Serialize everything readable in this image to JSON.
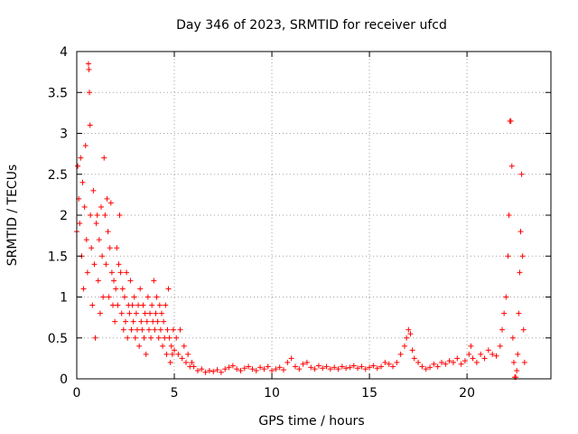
{
  "chart_data": {
    "type": "scatter",
    "title": "Day 346 of 2023, SRMTID for receiver ufcd",
    "xlabel": "GPS time / hours",
    "ylabel": "SRMTID / TECUs",
    "xlim": [
      0,
      24.3
    ],
    "ylim": [
      0,
      4
    ],
    "xticks": [
      0,
      5,
      10,
      15,
      20
    ],
    "xtick_labels": [
      "0",
      "5",
      "10",
      "15",
      "20"
    ],
    "yticks": [
      0,
      0.5,
      1,
      1.5,
      2,
      2.5,
      3,
      3.5,
      4
    ],
    "ytick_labels": [
      "0",
      "0.5",
      "1",
      "1.5",
      "2",
      "2.5",
      "3",
      "3.5",
      "4"
    ],
    "grid": true,
    "marker": "+",
    "series": [
      {
        "name": "SRMTID",
        "color": "#ff0000",
        "points": [
          [
            0.0,
            1.8
          ],
          [
            0.05,
            2.6
          ],
          [
            0.1,
            2.2
          ],
          [
            0.15,
            1.9
          ],
          [
            0.2,
            2.7
          ],
          [
            0.25,
            1.5
          ],
          [
            0.3,
            2.4
          ],
          [
            0.35,
            1.1
          ],
          [
            0.4,
            2.1
          ],
          [
            0.45,
            2.85
          ],
          [
            0.5,
            1.7
          ],
          [
            0.55,
            1.3
          ],
          [
            0.6,
            3.85
          ],
          [
            0.62,
            3.78
          ],
          [
            0.65,
            3.5
          ],
          [
            0.68,
            3.1
          ],
          [
            0.7,
            2.0
          ],
          [
            0.75,
            1.6
          ],
          [
            0.8,
            0.9
          ],
          [
            0.85,
            2.3
          ],
          [
            0.9,
            1.4
          ],
          [
            0.95,
            0.5
          ],
          [
            1.0,
            1.9
          ],
          [
            1.05,
            2.0
          ],
          [
            1.1,
            1.2
          ],
          [
            1.15,
            1.7
          ],
          [
            1.2,
            0.8
          ],
          [
            1.25,
            2.1
          ],
          [
            1.3,
            1.5
          ],
          [
            1.35,
            1.0
          ],
          [
            1.4,
            2.7
          ],
          [
            1.45,
            2.0
          ],
          [
            1.5,
            1.4
          ],
          [
            1.55,
            2.2
          ],
          [
            1.6,
            1.8
          ],
          [
            1.65,
            1.0
          ],
          [
            1.7,
            1.6
          ],
          [
            1.75,
            2.15
          ],
          [
            1.8,
            1.3
          ],
          [
            1.85,
            0.9
          ],
          [
            1.9,
            1.2
          ],
          [
            1.95,
            0.7
          ],
          [
            2.0,
            1.1
          ],
          [
            2.05,
            1.6
          ],
          [
            2.1,
            0.9
          ],
          [
            2.15,
            1.4
          ],
          [
            2.2,
            2.0
          ],
          [
            2.25,
            1.3
          ],
          [
            2.3,
            0.8
          ],
          [
            2.35,
            1.1
          ],
          [
            2.4,
            0.6
          ],
          [
            2.45,
            1.0
          ],
          [
            2.5,
            0.7
          ],
          [
            2.55,
            1.3
          ],
          [
            2.6,
            0.5
          ],
          [
            2.65,
            0.9
          ],
          [
            2.7,
            0.8
          ],
          [
            2.75,
            1.2
          ],
          [
            2.8,
            0.6
          ],
          [
            2.85,
            0.9
          ],
          [
            2.9,
            0.7
          ],
          [
            2.95,
            1.0
          ],
          [
            3.0,
            0.5
          ],
          [
            3.05,
            0.8
          ],
          [
            3.1,
            0.6
          ],
          [
            3.15,
            0.9
          ],
          [
            3.2,
            0.4
          ],
          [
            3.25,
            1.1
          ],
          [
            3.3,
            0.7
          ],
          [
            3.35,
            0.6
          ],
          [
            3.4,
            0.9
          ],
          [
            3.45,
            0.5
          ],
          [
            3.5,
            0.8
          ],
          [
            3.55,
            0.3
          ],
          [
            3.6,
            0.7
          ],
          [
            3.65,
            1.0
          ],
          [
            3.7,
            0.6
          ],
          [
            3.75,
            0.8
          ],
          [
            3.8,
            0.5
          ],
          [
            3.85,
            0.9
          ],
          [
            3.9,
            0.7
          ],
          [
            3.95,
            1.2
          ],
          [
            4.0,
            0.6
          ],
          [
            4.05,
            0.8
          ],
          [
            4.1,
            1.0
          ],
          [
            4.15,
            0.7
          ],
          [
            4.2,
            0.5
          ],
          [
            4.25,
            0.9
          ],
          [
            4.3,
            0.6
          ],
          [
            4.35,
            0.8
          ],
          [
            4.4,
            0.4
          ],
          [
            4.45,
            0.7
          ],
          [
            4.5,
            0.5
          ],
          [
            4.55,
            0.9
          ],
          [
            4.6,
            0.3
          ],
          [
            4.65,
            0.6
          ],
          [
            4.7,
            1.1
          ],
          [
            4.75,
            0.5
          ],
          [
            4.8,
            0.2
          ],
          [
            4.85,
            0.4
          ],
          [
            4.9,
            0.3
          ],
          [
            4.95,
            0.6
          ],
          [
            5.0,
            0.35
          ],
          [
            5.1,
            0.5
          ],
          [
            5.2,
            0.3
          ],
          [
            5.3,
            0.6
          ],
          [
            5.4,
            0.25
          ],
          [
            5.5,
            0.4
          ],
          [
            5.6,
            0.2
          ],
          [
            5.7,
            0.3
          ],
          [
            5.8,
            0.15
          ],
          [
            5.9,
            0.2
          ],
          [
            6.0,
            0.15
          ],
          [
            6.2,
            0.1
          ],
          [
            6.4,
            0.12
          ],
          [
            6.6,
            0.08
          ],
          [
            6.8,
            0.1
          ],
          [
            7.0,
            0.09
          ],
          [
            7.2,
            0.11
          ],
          [
            7.4,
            0.08
          ],
          [
            7.6,
            0.12
          ],
          [
            7.8,
            0.14
          ],
          [
            8.0,
            0.16
          ],
          [
            8.2,
            0.12
          ],
          [
            8.4,
            0.1
          ],
          [
            8.6,
            0.13
          ],
          [
            8.8,
            0.15
          ],
          [
            9.0,
            0.12
          ],
          [
            9.2,
            0.1
          ],
          [
            9.4,
            0.14
          ],
          [
            9.6,
            0.12
          ],
          [
            9.8,
            0.15
          ],
          [
            10.0,
            0.1
          ],
          [
            10.2,
            0.12
          ],
          [
            10.4,
            0.14
          ],
          [
            10.6,
            0.11
          ],
          [
            10.8,
            0.2
          ],
          [
            11.0,
            0.25
          ],
          [
            11.2,
            0.15
          ],
          [
            11.4,
            0.12
          ],
          [
            11.6,
            0.18
          ],
          [
            11.8,
            0.2
          ],
          [
            12.0,
            0.14
          ],
          [
            12.2,
            0.12
          ],
          [
            12.4,
            0.16
          ],
          [
            12.6,
            0.13
          ],
          [
            12.8,
            0.15
          ],
          [
            13.0,
            0.12
          ],
          [
            13.2,
            0.14
          ],
          [
            13.4,
            0.12
          ],
          [
            13.6,
            0.15
          ],
          [
            13.8,
            0.13
          ],
          [
            14.0,
            0.14
          ],
          [
            14.2,
            0.16
          ],
          [
            14.4,
            0.13
          ],
          [
            14.6,
            0.15
          ],
          [
            14.8,
            0.12
          ],
          [
            15.0,
            0.14
          ],
          [
            15.2,
            0.16
          ],
          [
            15.4,
            0.13
          ],
          [
            15.6,
            0.15
          ],
          [
            15.8,
            0.2
          ],
          [
            16.0,
            0.18
          ],
          [
            16.2,
            0.15
          ],
          [
            16.4,
            0.2
          ],
          [
            16.6,
            0.3
          ],
          [
            16.8,
            0.4
          ],
          [
            16.9,
            0.5
          ],
          [
            17.0,
            0.6
          ],
          [
            17.1,
            0.55
          ],
          [
            17.2,
            0.35
          ],
          [
            17.3,
            0.25
          ],
          [
            17.5,
            0.2
          ],
          [
            17.7,
            0.15
          ],
          [
            17.9,
            0.12
          ],
          [
            18.1,
            0.14
          ],
          [
            18.3,
            0.18
          ],
          [
            18.5,
            0.15
          ],
          [
            18.7,
            0.2
          ],
          [
            18.9,
            0.18
          ],
          [
            19.1,
            0.22
          ],
          [
            19.3,
            0.2
          ],
          [
            19.5,
            0.25
          ],
          [
            19.7,
            0.18
          ],
          [
            19.9,
            0.22
          ],
          [
            20.1,
            0.3
          ],
          [
            20.2,
            0.4
          ],
          [
            20.3,
            0.25
          ],
          [
            20.5,
            0.2
          ],
          [
            20.7,
            0.3
          ],
          [
            20.9,
            0.25
          ],
          [
            21.1,
            0.35
          ],
          [
            21.3,
            0.3
          ],
          [
            21.5,
            0.28
          ],
          [
            21.7,
            0.4
          ],
          [
            21.8,
            0.6
          ],
          [
            21.9,
            0.8
          ],
          [
            22.0,
            1.0
          ],
          [
            22.1,
            1.5
          ],
          [
            22.15,
            2.0
          ],
          [
            22.2,
            3.15
          ],
          [
            22.25,
            3.15
          ],
          [
            22.3,
            2.6
          ],
          [
            22.35,
            0.5
          ],
          [
            22.4,
            0.2
          ],
          [
            22.45,
            0.02
          ],
          [
            22.5,
            0.02
          ],
          [
            22.55,
            0.1
          ],
          [
            22.6,
            0.3
          ],
          [
            22.65,
            0.8
          ],
          [
            22.7,
            1.3
          ],
          [
            22.75,
            1.8
          ],
          [
            22.8,
            2.5
          ],
          [
            22.85,
            1.5
          ],
          [
            22.9,
            0.6
          ],
          [
            22.95,
            0.2
          ]
        ]
      }
    ]
  }
}
